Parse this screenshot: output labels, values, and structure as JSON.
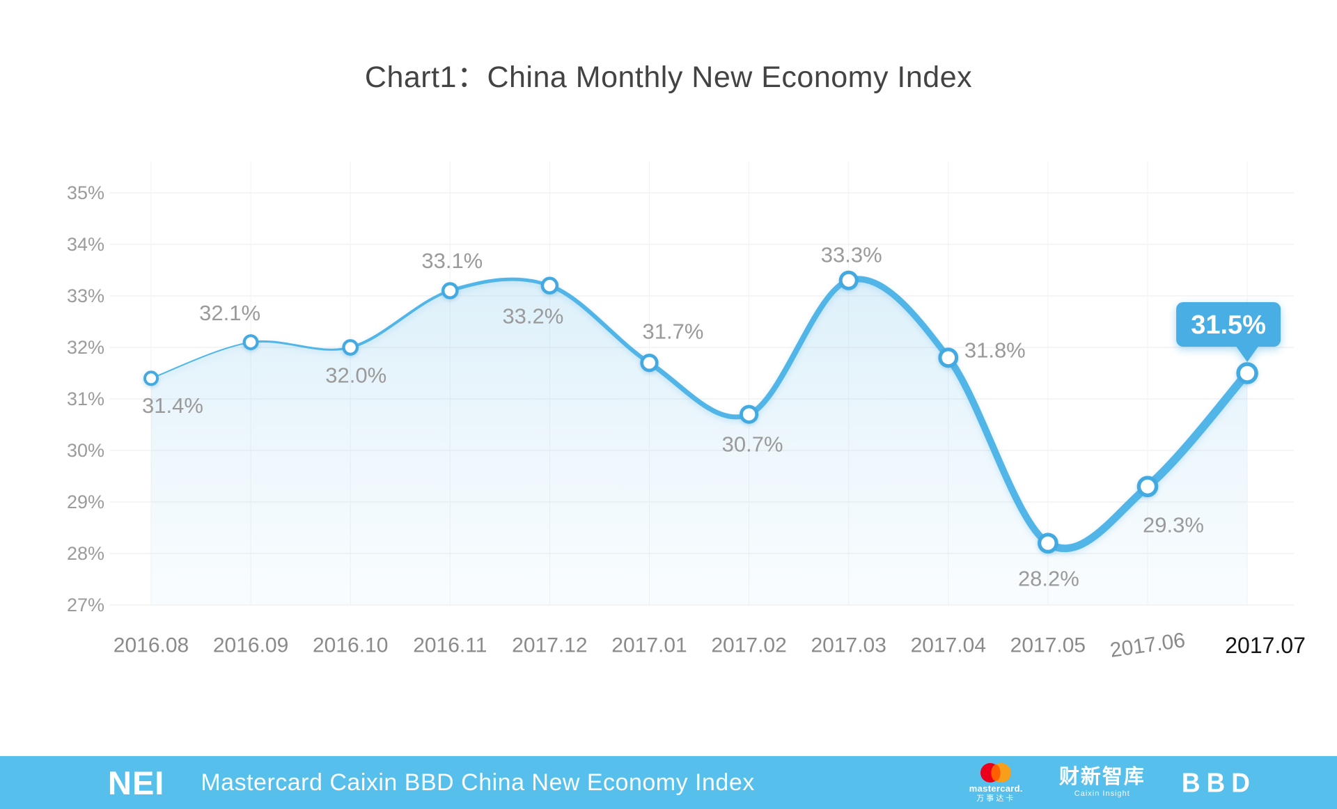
{
  "page_title": "Chart1：China Monthly New Economy Index",
  "chart_data": {
    "type": "line",
    "title": "Chart1：China Monthly New Economy Index",
    "categories": [
      "2016.08",
      "2016.09",
      "2016.10",
      "2016.11",
      "2017.12",
      "2017.01",
      "2017.02",
      "2017.03",
      "2017.04",
      "2017.05",
      "2017.06",
      "2017.07"
    ],
    "values": [
      31.4,
      32.1,
      32.0,
      33.1,
      33.2,
      31.7,
      30.7,
      33.3,
      31.8,
      28.2,
      29.3,
      31.5
    ],
    "point_labels": [
      "31.4%",
      "32.1%",
      "32.0%",
      "33.1%",
      "33.2%",
      "31.7%",
      "30.7%",
      "33.3%",
      "31.8%",
      "28.2%",
      "29.3%",
      "31.5%"
    ],
    "ytick_labels": [
      "35%",
      "34%",
      "33%",
      "32%",
      "31%",
      "30%",
      "29%",
      "28%",
      "27%"
    ],
    "ylim": [
      27,
      35
    ],
    "xlabel": "",
    "ylabel": "",
    "grid": true,
    "legend": "none",
    "smooth": true,
    "area": true,
    "last_point_tooltip": "31.5%",
    "x_label_emphasis_index": 11,
    "x_label_tilt_index": 10,
    "label_offsets": [
      [
        31,
        39
      ],
      [
        -30,
        -42
      ],
      [
        8,
        40
      ],
      [
        3,
        -43
      ],
      [
        -24,
        44
      ],
      [
        34,
        -45
      ],
      [
        5,
        43
      ],
      [
        4,
        -37
      ],
      [
        67,
        -11
      ],
      [
        1,
        51
      ],
      [
        37,
        55
      ],
      null
    ],
    "colors": {
      "line": "#52B5E8",
      "marker_ring": "#43AAE1",
      "marker_fill": "#ffffff",
      "area_top": "rgba(99,186,232,0.22)",
      "area_bottom": "rgba(140,205,240,0.05)",
      "tooltip_bg": "#49AEE4",
      "tooltip_text": "#ffffff",
      "grid_h": "#ebebeb",
      "grid_v": "#f2f2f2",
      "ytick": "#9b9b9b",
      "point_label": "#9a9a9a",
      "x_label": "#8a8a8a",
      "x_label_emphasis": "#141414",
      "title": "#434343"
    }
  },
  "footer": {
    "bar_color": "#57BFEC",
    "nei": "NEI",
    "name": "Mastercard Caixin BBD China New Economy Index",
    "mastercard_word": "mastercard.",
    "mastercard_cn": "万事达卡",
    "caixin_cn": "财新智库",
    "caixin_en": "Caixin Insight",
    "bbd": "BBD",
    "mastercard_red": "#EB001B",
    "mastercard_orange": "#F79E1B",
    "mastercard_overlap": "#FF5F00"
  }
}
